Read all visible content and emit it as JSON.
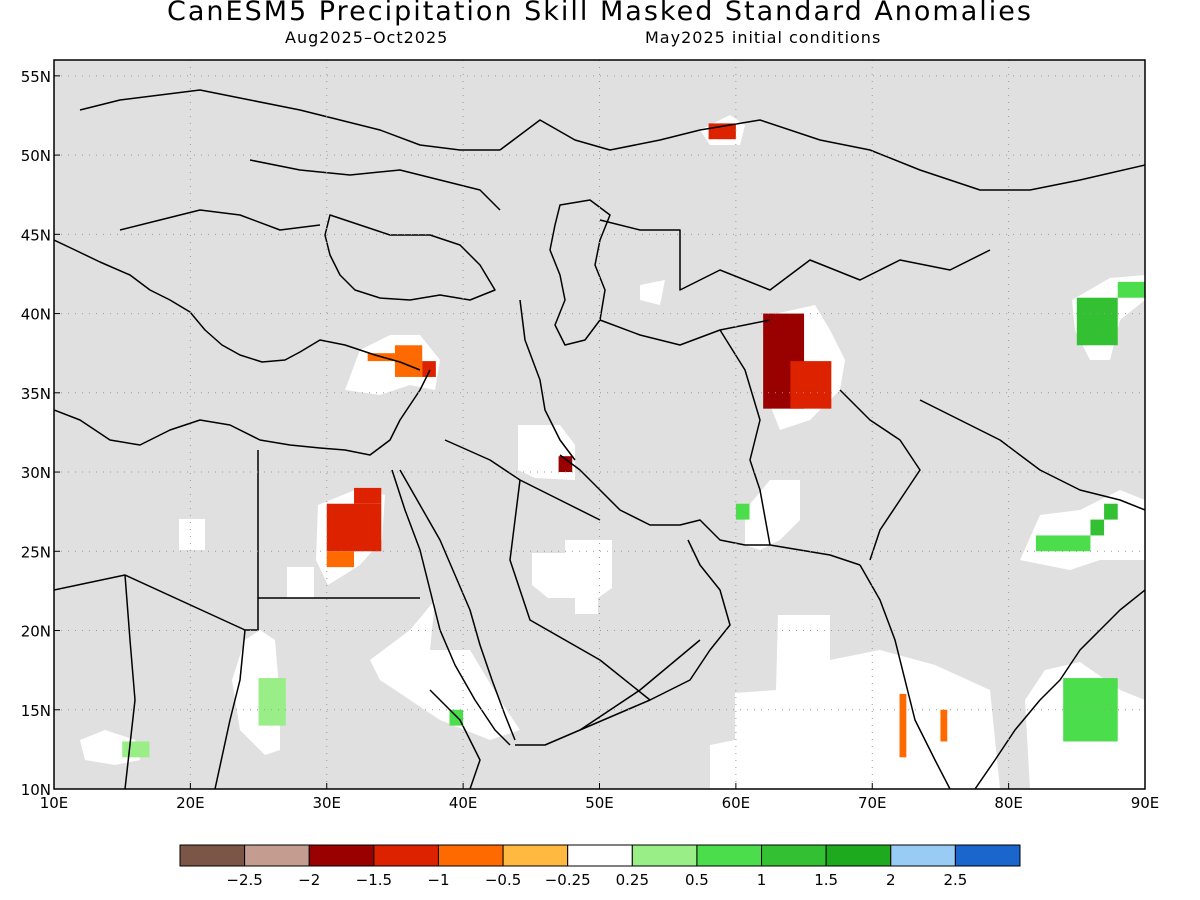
{
  "title": "CanESM5 Precipitation Skill Masked Standard Anomalies",
  "subtitle_left": "Aug2025–Oct2025",
  "subtitle_right": "May2025 initial conditions",
  "map": {
    "lon_min": 10,
    "lon_max": 90,
    "lat_min": 10,
    "lat_max": 56,
    "lon_ticks": [
      {
        "v": 10,
        "label": "10E"
      },
      {
        "v": 20,
        "label": "20E"
      },
      {
        "v": 30,
        "label": "30E"
      },
      {
        "v": 40,
        "label": "40E"
      },
      {
        "v": 50,
        "label": "50E"
      },
      {
        "v": 60,
        "label": "60E"
      },
      {
        "v": 70,
        "label": "70E"
      },
      {
        "v": 80,
        "label": "80E"
      },
      {
        "v": 90,
        "label": "90E"
      }
    ],
    "lat_ticks": [
      {
        "v": 10,
        "label": "10N"
      },
      {
        "v": 15,
        "label": "15N"
      },
      {
        "v": 20,
        "label": "20N"
      },
      {
        "v": 25,
        "label": "25N"
      },
      {
        "v": 30,
        "label": "30N"
      },
      {
        "v": 35,
        "label": "35N"
      },
      {
        "v": 40,
        "label": "40N"
      },
      {
        "v": 45,
        "label": "45N"
      },
      {
        "v": 50,
        "label": "50N"
      },
      {
        "v": 55,
        "label": "55N"
      }
    ],
    "masked_color": "#e0e0e0",
    "anomaly_cells": [
      {
        "lon": [
          62,
          65
        ],
        "lat": [
          34,
          40
        ],
        "bin": "-1.5"
      },
      {
        "lon": [
          64,
          67
        ],
        "lat": [
          34,
          37
        ],
        "bin": "-1"
      },
      {
        "lon": [
          47,
          48
        ],
        "lat": [
          30,
          31
        ],
        "bin": "-1.5"
      },
      {
        "lon": [
          30,
          34
        ],
        "lat": [
          25,
          28
        ],
        "bin": "-1"
      },
      {
        "lon": [
          32,
          34
        ],
        "lat": [
          28,
          29
        ],
        "bin": "-1"
      },
      {
        "lon": [
          30,
          32
        ],
        "lat": [
          24,
          25
        ],
        "bin": "-0.5"
      },
      {
        "lon": [
          35,
          37
        ],
        "lat": [
          36,
          38
        ],
        "bin": "-0.5"
      },
      {
        "lon": [
          37,
          38
        ],
        "lat": [
          36,
          37
        ],
        "bin": "-1"
      },
      {
        "lon": [
          33,
          35
        ],
        "lat": [
          37,
          37.5
        ],
        "bin": "-0.5"
      },
      {
        "lon": [
          58,
          60
        ],
        "lat": [
          51,
          52
        ],
        "bin": "-1"
      },
      {
        "lon": [
          85,
          88
        ],
        "lat": [
          38,
          41
        ],
        "bin": "1.5"
      },
      {
        "lon": [
          88,
          90
        ],
        "lat": [
          41,
          42
        ],
        "bin": "1"
      },
      {
        "lon": [
          84,
          88
        ],
        "lat": [
          13,
          17
        ],
        "bin": "1"
      },
      {
        "lon": [
          15,
          17
        ],
        "lat": [
          12,
          13
        ],
        "bin": "0.5"
      },
      {
        "lon": [
          25,
          27
        ],
        "lat": [
          14,
          17
        ],
        "bin": "0.5"
      },
      {
        "lon": [
          82,
          86
        ],
        "lat": [
          25,
          26
        ],
        "bin": "1"
      },
      {
        "lon": [
          86,
          87
        ],
        "lat": [
          26,
          27
        ],
        "bin": "1.5"
      },
      {
        "lon": [
          87,
          88
        ],
        "lat": [
          27,
          28
        ],
        "bin": "1.5"
      },
      {
        "lon": [
          60,
          61
        ],
        "lat": [
          27,
          28
        ],
        "bin": "1"
      },
      {
        "lon": [
          39,
          40
        ],
        "lat": [
          14,
          15
        ],
        "bin": "1"
      },
      {
        "lon": [
          72,
          72.5
        ],
        "lat": [
          12,
          16
        ],
        "bin": "-0.5"
      },
      {
        "lon": [
          75,
          75.5
        ],
        "lat": [
          13,
          15
        ],
        "bin": "-0.5"
      }
    ]
  },
  "colorbar": {
    "colors": [
      "#7b5545",
      "#c49d90",
      "#990000",
      "#dd2200",
      "#ff6a00",
      "#ffb840",
      "#ffffff",
      "#99ee88",
      "#4cdd4c",
      "#33c033",
      "#1eaa1e",
      "#99ccf5",
      "#1a66cc"
    ],
    "bins": [
      "-2.5",
      "-2",
      "-1.5",
      "-1",
      "-0.5",
      "-0.25",
      "0.25",
      "0.5",
      "1",
      "1.5",
      "2",
      "2.5",
      "2.5+"
    ],
    "tick_labels": [
      "−2.5",
      "−2",
      "−1.5",
      "−1",
      "−0.5",
      "−0.25",
      "0.25",
      "0.5",
      "1",
      "1.5",
      "2",
      "2.5"
    ]
  }
}
